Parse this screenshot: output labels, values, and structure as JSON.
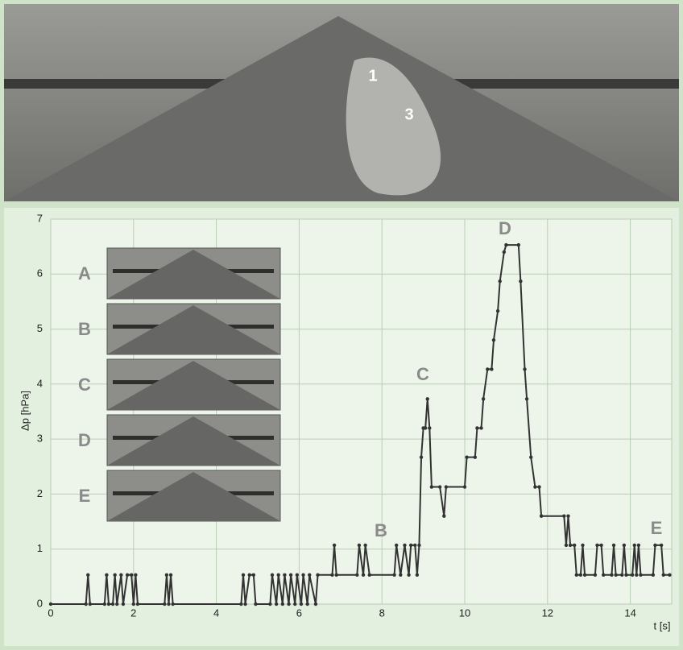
{
  "photo_labels": [
    "1",
    "3"
  ],
  "chart_data": {
    "type": "line",
    "xlabel": "t [s]",
    "ylabel": "Δp [hPa]",
    "xlim": [
      0,
      15
    ],
    "ylim": [
      0,
      7
    ],
    "xticks": [
      0,
      2,
      4,
      6,
      8,
      10,
      12,
      14
    ],
    "yticks": [
      0,
      1,
      2,
      3,
      4,
      5,
      6,
      7
    ],
    "grid": true,
    "annotations": [
      "B",
      "C",
      "D",
      "E"
    ],
    "inset_labels": [
      "A",
      "B",
      "C",
      "D",
      "E"
    ],
    "series": [
      {
        "color": "#333333",
        "x": [
          0,
          0.85,
          0.9,
          0.95,
          1.3,
          1.35,
          1.4,
          1.5,
          1.55,
          1.6,
          1.7,
          1.75,
          1.85,
          1.95,
          2.0,
          2.05,
          2.1,
          2.75,
          2.8,
          2.85,
          2.9,
          2.95,
          4.6,
          4.65,
          4.7,
          4.8,
          4.9,
          4.95,
          5.3,
          5.35,
          5.45,
          5.5,
          5.6,
          5.65,
          5.75,
          5.8,
          5.9,
          5.95,
          6.05,
          6.1,
          6.2,
          6.25,
          6.4,
          6.45,
          6.8,
          6.85,
          6.9,
          7.4,
          7.45,
          7.55,
          7.6,
          7.7,
          8.3,
          8.35,
          8.45,
          8.55,
          8.65,
          8.7,
          8.8,
          8.85,
          8.9,
          8.95,
          9.0,
          9.05,
          9.1,
          9.15,
          9.2,
          9.4,
          9.5,
          9.55,
          10.0,
          10.05,
          10.25,
          10.3,
          10.4,
          10.45,
          10.55,
          10.65,
          10.7,
          10.8,
          10.85,
          10.95,
          11.0,
          11.3,
          11.35,
          11.45,
          11.5,
          11.6,
          11.7,
          11.8,
          11.85,
          12.4,
          12.45,
          12.5,
          12.55,
          12.65,
          12.7,
          12.8,
          12.85,
          12.9,
          13.15,
          13.2,
          13.3,
          13.35,
          13.55,
          13.6,
          13.65,
          13.8,
          13.85,
          13.9,
          14.05,
          14.1,
          14.15,
          14.2,
          14.25,
          14.55,
          14.6,
          14.75,
          14.8,
          14.95
        ],
        "values": [
          0,
          0,
          0.53,
          0,
          0,
          0.53,
          0,
          0,
          0.53,
          0,
          0.53,
          0,
          0.53,
          0.53,
          0,
          0.53,
          0,
          0,
          0.53,
          0,
          0.53,
          0,
          0,
          0.53,
          0,
          0.53,
          0.53,
          0,
          0,
          0.53,
          0,
          0.53,
          0,
          0.53,
          0,
          0.53,
          0,
          0.53,
          0,
          0.53,
          0,
          0.53,
          0,
          0.53,
          0.53,
          1.07,
          0.53,
          0.53,
          1.07,
          0.53,
          1.07,
          0.53,
          0.53,
          1.07,
          0.53,
          1.07,
          0.53,
          1.07,
          1.07,
          0.53,
          1.07,
          2.67,
          3.2,
          3.2,
          3.73,
          3.2,
          2.13,
          2.13,
          1.6,
          2.13,
          2.13,
          2.67,
          2.67,
          3.2,
          3.2,
          3.73,
          4.27,
          4.27,
          4.8,
          5.33,
          5.87,
          6.4,
          6.53,
          6.53,
          5.87,
          4.27,
          3.73,
          2.67,
          2.13,
          2.13,
          1.6,
          1.6,
          1.07,
          1.6,
          1.07,
          1.07,
          0.53,
          0.53,
          1.07,
          0.53,
          0.53,
          1.07,
          1.07,
          0.53,
          0.53,
          1.07,
          0.53,
          0.53,
          1.07,
          0.53,
          0.53,
          1.07,
          0.53,
          1.07,
          0.53,
          0.53,
          1.07,
          1.07,
          0.53,
          0.53
        ]
      }
    ]
  }
}
